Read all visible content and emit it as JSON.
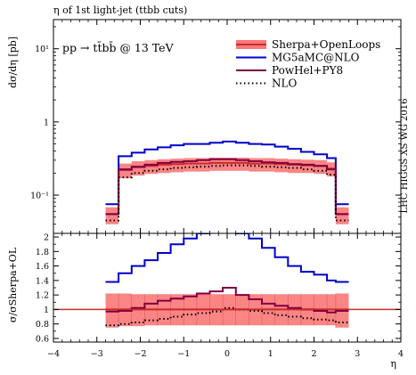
{
  "title": "η of 1st light-jet (ttbb cuts)",
  "process": "pp → tt̄bb̄ @ 13 TeV",
  "side_label": "LHC HIGGS XS WG 2016",
  "ylabel_main": "dσ/dη [pb]",
  "ylabel_ratio": "σ/σSherpa+OL",
  "xlabel": "η",
  "colors": {
    "sherpa_line": "#cc2a2a",
    "sherpa_band": "#fa7878",
    "mg5": "#0000cc",
    "powhel": "#800040",
    "nlo": "#000000"
  },
  "chart_data": [
    {
      "type": "line",
      "panel": "main",
      "title": "η of 1st light-jet (ttbb cuts)",
      "xlabel": "η",
      "ylabel": "dσ/dη [pb]",
      "yscale": "log",
      "xlim": [
        -4,
        4
      ],
      "ylim": [
        0.03,
        25
      ],
      "x_ticks": [
        -4,
        -3,
        -2,
        -1,
        0,
        1,
        2,
        3,
        4
      ],
      "y_ticks": [
        {
          "value": 0.1,
          "label": "10⁻¹"
        },
        {
          "value": 1,
          "label": "1"
        },
        {
          "value": 10,
          "label": "10¹"
        }
      ],
      "legend_position": "top-right",
      "bin_edges": [
        -2.8,
        -2.5,
        -2.2,
        -1.9,
        -1.6,
        -1.3,
        -1.0,
        -0.7,
        -0.4,
        -0.1,
        0.2,
        0.5,
        0.8,
        1.1,
        1.4,
        1.7,
        2.0,
        2.3,
        2.5,
        2.8
      ],
      "series": [
        {
          "name": "Sherpa+OpenLoops",
          "style": "band",
          "values": [
            0.055,
            0.22,
            0.24,
            0.25,
            0.26,
            0.265,
            0.27,
            0.27,
            0.275,
            0.275,
            0.275,
            0.27,
            0.27,
            0.265,
            0.26,
            0.255,
            0.25,
            0.23,
            0.055
          ],
          "band_low": [
            0.04,
            0.17,
            0.185,
            0.195,
            0.2,
            0.205,
            0.21,
            0.21,
            0.215,
            0.215,
            0.215,
            0.21,
            0.21,
            0.205,
            0.2,
            0.2,
            0.195,
            0.18,
            0.04
          ],
          "band_high": [
            0.068,
            0.27,
            0.29,
            0.3,
            0.31,
            0.315,
            0.32,
            0.32,
            0.325,
            0.325,
            0.325,
            0.32,
            0.32,
            0.315,
            0.31,
            0.305,
            0.3,
            0.28,
            0.068
          ]
        },
        {
          "name": "MG5aMC@NLO",
          "style": "solid",
          "values": [
            0.075,
            0.34,
            0.38,
            0.42,
            0.45,
            0.48,
            0.5,
            0.5,
            0.52,
            0.54,
            0.52,
            0.5,
            0.49,
            0.46,
            0.43,
            0.39,
            0.36,
            0.32,
            0.075
          ]
        },
        {
          "name": "PowHel+PY8",
          "style": "solid",
          "values": [
            0.055,
            0.225,
            0.245,
            0.26,
            0.275,
            0.285,
            0.29,
            0.3,
            0.31,
            0.31,
            0.3,
            0.29,
            0.28,
            0.275,
            0.265,
            0.26,
            0.25,
            0.225,
            0.055
          ]
        },
        {
          "name": "NLO",
          "style": "dotted",
          "values": [
            0.045,
            0.175,
            0.2,
            0.215,
            0.225,
            0.235,
            0.24,
            0.245,
            0.25,
            0.255,
            0.255,
            0.25,
            0.245,
            0.24,
            0.235,
            0.225,
            0.215,
            0.19,
            0.045
          ]
        }
      ]
    },
    {
      "type": "line",
      "panel": "ratio",
      "xlabel": "η",
      "ylabel": "σ/σSherpa+OL",
      "xlim": [
        -4,
        4
      ],
      "ylim": [
        0.55,
        2.05
      ],
      "x_ticks": [
        -4,
        -3,
        -2,
        -1,
        0,
        1,
        2,
        3,
        4
      ],
      "y_ticks": [
        0.6,
        0.8,
        1,
        1.2,
        1.4,
        1.6,
        1.8,
        2
      ],
      "y_tick_labels": [
        "0.6",
        "0.8",
        "1",
        "1.2",
        "1.4",
        "1.6",
        "1.8",
        "2"
      ],
      "bin_edges": [
        -2.8,
        -2.5,
        -2.2,
        -1.9,
        -1.6,
        -1.3,
        -1.0,
        -0.7,
        -0.4,
        -0.1,
        0.2,
        0.5,
        0.8,
        1.1,
        1.4,
        1.7,
        2.0,
        2.3,
        2.5,
        2.8
      ],
      "series": [
        {
          "name": "Sherpa+OpenLoops",
          "style": "band",
          "values": [
            1,
            1,
            1,
            1,
            1,
            1,
            1,
            1,
            1,
            1,
            1,
            1,
            1,
            1,
            1,
            1,
            1,
            1,
            1
          ],
          "band_low": [
            0.75,
            0.77,
            0.77,
            0.78,
            0.78,
            0.78,
            0.78,
            0.78,
            0.78,
            0.78,
            0.78,
            0.78,
            0.78,
            0.78,
            0.78,
            0.78,
            0.78,
            0.78,
            0.75
          ],
          "band_high": [
            1.22,
            1.22,
            1.21,
            1.21,
            1.21,
            1.21,
            1.21,
            1.21,
            1.21,
            1.21,
            1.21,
            1.21,
            1.21,
            1.21,
            1.21,
            1.21,
            1.21,
            1.21,
            1.22
          ]
        },
        {
          "name": "MG5aMC@NLO",
          "style": "solid",
          "values": [
            1.38,
            1.5,
            1.6,
            1.68,
            1.78,
            1.9,
            1.98,
            2.05,
            2.1,
            2.1,
            2.05,
            1.98,
            1.85,
            1.72,
            1.6,
            1.52,
            1.48,
            1.4,
            1.38
          ]
        },
        {
          "name": "PowHel+PY8",
          "style": "solid",
          "values": [
            0.97,
            0.98,
            1.02,
            1.08,
            1.12,
            1.15,
            1.18,
            1.22,
            1.25,
            1.3,
            1.2,
            1.14,
            1.08,
            1.05,
            1.02,
            1.0,
            0.98,
            0.96,
            0.98
          ]
        },
        {
          "name": "NLO",
          "style": "dotted",
          "values": [
            0.78,
            0.8,
            0.82,
            0.85,
            0.87,
            0.9,
            0.93,
            0.95,
            0.97,
            1.02,
            1.0,
            0.98,
            0.95,
            0.92,
            0.9,
            0.88,
            0.86,
            0.85,
            0.82
          ]
        }
      ]
    }
  ]
}
